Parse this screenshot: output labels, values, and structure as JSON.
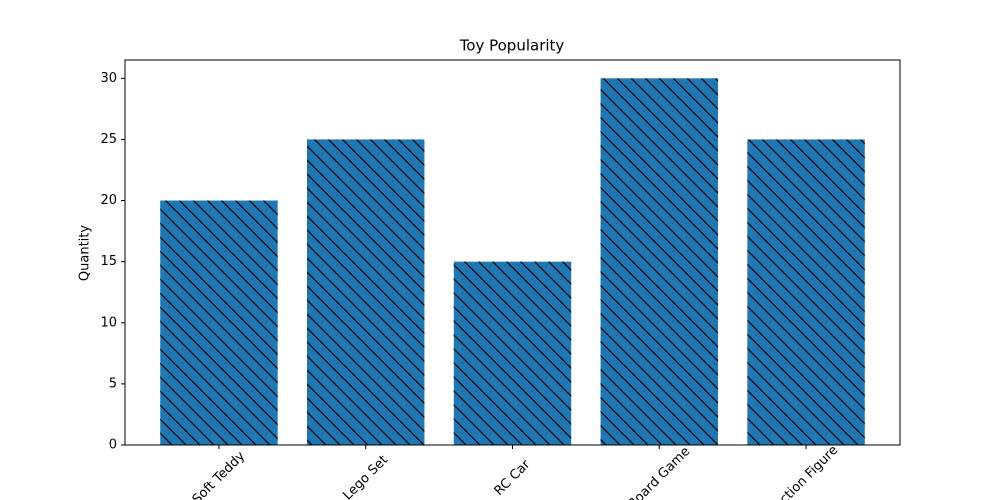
{
  "chart_data": {
    "type": "bar",
    "title": "Toy Popularity",
    "y_label": "Quantity",
    "categories": [
      "Soft Teddy",
      "Lego Set",
      "RC Car",
      "Board Game",
      "Action Figure"
    ],
    "values": [
      20,
      25,
      15,
      30,
      25
    ],
    "color": "#1f77b4",
    "hatch": "\\\\",
    "ylim": [
      0,
      31.5
    ],
    "yticks": [
      0,
      5,
      10,
      15,
      20,
      25,
      30
    ],
    "grid": false
  }
}
